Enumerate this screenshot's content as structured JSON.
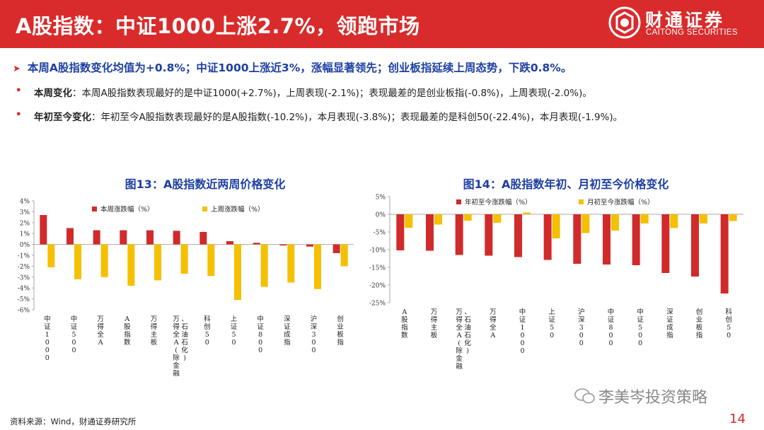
{
  "header": {
    "title": "A股指数：中证1000上涨2.7%，领跑市场",
    "logo_cn": "财通证券",
    "logo_en": "CAITONG SECURITIES"
  },
  "summary": {
    "headline": "本周A股指数变化均值为+0.8%；中证1000上涨近3%，涨幅显著领先；创业板指延续上周态势，下跌0.8%。",
    "bullets": [
      {
        "label": "本周变化",
        "text": "：本周A股指数表现最好的是中证1000(+2.7%)，上周表现(-2.1%)；表现最差的是创业板指(-0.8%)，上周表现(-2.0%)。"
      },
      {
        "label": "年初至今变化",
        "text": "：年初至今A股指数表现最好的是A股指数(-10.2%)，本月表现(-3.8%)；表现最差的是科创50(-22.4%)，本月表现(-1.9%)。"
      }
    ]
  },
  "colors": {
    "brand_red": "#d92b2b",
    "series_red": "#d12a2a",
    "series_yellow": "#f5c000",
    "headline_blue": "#1e3fa3"
  },
  "chart_data": [
    {
      "type": "bar",
      "title": "图13：A股指数近两周价格变化",
      "categories": [
        "中证1000",
        "中证500",
        "万得全A",
        "A股指数",
        "万得主板",
        "万得全A(除金融、石油石化)",
        "科创50",
        "上证50",
        "中证800",
        "深证成指",
        "沪深300",
        "创业板指"
      ],
      "series": [
        {
          "name": "本周涨跌幅（%）",
          "color": "#d12a2a",
          "values": [
            2.7,
            1.5,
            1.3,
            1.3,
            1.3,
            1.25,
            1.15,
            0.3,
            0.15,
            -0.1,
            -0.2,
            -0.8
          ]
        },
        {
          "name": "上周涨跌幅（%）",
          "color": "#f5c000",
          "values": [
            -2.1,
            -3.2,
            -3.0,
            -3.8,
            -3.3,
            -2.7,
            -2.9,
            -5.1,
            -3.9,
            -3.5,
            -4.1,
            -2.0
          ]
        }
      ],
      "ylim": [
        -6,
        4
      ],
      "yticks": [
        "4%",
        "3%",
        "2%",
        "1%",
        "0%",
        "-1%",
        "-2%",
        "-3%",
        "-4%",
        "-5%",
        "-6%"
      ],
      "legend": "top"
    },
    {
      "type": "bar",
      "title": "图14：A股指数年初、月初至今价格变化",
      "categories": [
        "A股指数",
        "万得主板",
        "万得全A(除金融、石油石化)",
        "万得全A",
        "中证1000",
        "上证50",
        "沪深300",
        "中证800",
        "中证500",
        "深证成指",
        "创业板指",
        "科创50"
      ],
      "series": [
        {
          "name": "年初至今涨跌幅（%）",
          "color": "#d12a2a",
          "values": [
            -10.2,
            -10.3,
            -11.5,
            -11.7,
            -12.1,
            -12.9,
            -14.0,
            -14.2,
            -14.4,
            -16.6,
            -17.6,
            -22.4
          ]
        },
        {
          "name": "月初至今涨跌幅（%）",
          "color": "#f5c000",
          "values": [
            -3.8,
            -2.9,
            -1.8,
            -2.4,
            0.5,
            -6.8,
            -5.3,
            -4.6,
            -2.6,
            -3.9,
            -2.6,
            -1.9
          ]
        }
      ],
      "ylim": [
        -25,
        5
      ],
      "yticks": [
        "5%",
        "0%",
        "-5%",
        "-10%",
        "-15%",
        "-20%",
        "-25%"
      ],
      "legend": "top"
    }
  ],
  "footer": {
    "source": "资料来源：Wind，财通证券研究所",
    "watermark": "李美岑投资策略",
    "page_number": "14"
  }
}
